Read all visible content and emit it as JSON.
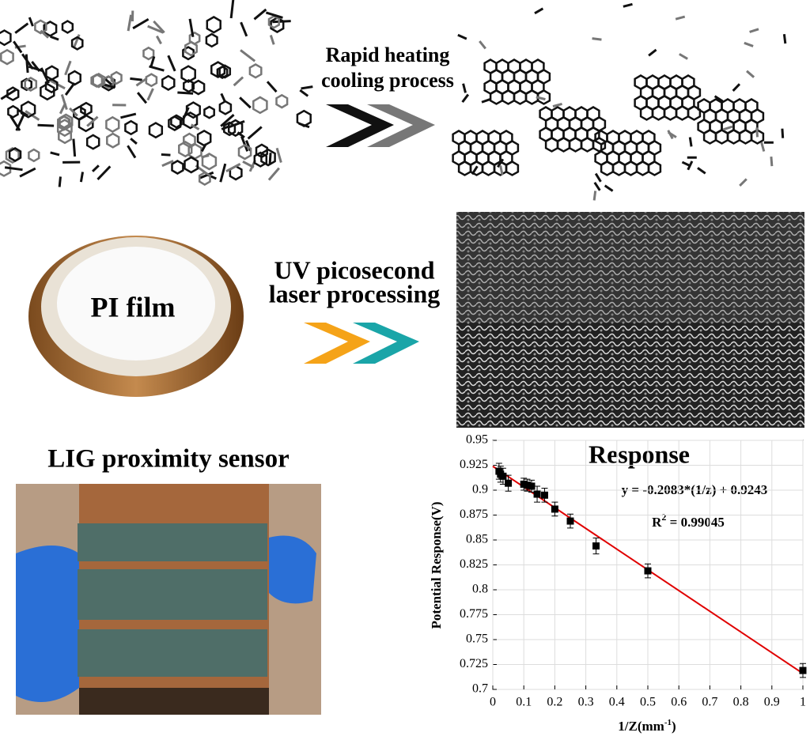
{
  "labels": {
    "step1_line1": "Rapid heating",
    "step1_line2": "cooling process",
    "step2_line1": "UV picosecond",
    "step2_line2": "laser processing",
    "film": "PI film",
    "sensor": "LIG proximity sensor"
  },
  "chart_data": {
    "type": "scatter",
    "title": "Response",
    "equation": "y = -0.2083*(1/z) + 0.9243",
    "r2": {
      "symbol": "R",
      "power": "2",
      "text": " = 0.99045"
    },
    "x_label": "1/Z(mm",
    "x_label_power": "-1",
    "x_label_end": ")",
    "y_label": "Potential Response(V)",
    "xlim": [
      0,
      1
    ],
    "ylim": [
      0.7,
      0.95
    ],
    "xticks": [
      0,
      0.1,
      0.2,
      0.3,
      0.4,
      0.5,
      0.6,
      0.7,
      0.8,
      0.9,
      1
    ],
    "yticks": [
      0.7,
      0.725,
      0.75,
      0.775,
      0.8,
      0.825,
      0.85,
      0.875,
      0.9,
      0.925,
      0.95
    ],
    "grid": true,
    "series": [
      {
        "color": "#000000",
        "x": [
          0.02,
          0.025,
          0.033,
          0.05,
          0.1,
          0.111,
          0.125,
          0.143,
          0.167,
          0.2,
          0.25,
          0.333,
          0.5,
          1.0
        ],
        "values": [
          0.919,
          0.916,
          0.914,
          0.907,
          0.906,
          0.905,
          0.904,
          0.896,
          0.895,
          0.881,
          0.869,
          0.844,
          0.819,
          0.719
        ],
        "errors": [
          0.008,
          0.008,
          0.008,
          0.008,
          0.006,
          0.006,
          0.006,
          0.008,
          0.007,
          0.007,
          0.007,
          0.008,
          0.007,
          0.007
        ]
      }
    ],
    "fit_line": {
      "color": "#e00000",
      "x": [
        0,
        1
      ],
      "values": [
        0.924,
        0.716
      ]
    }
  }
}
